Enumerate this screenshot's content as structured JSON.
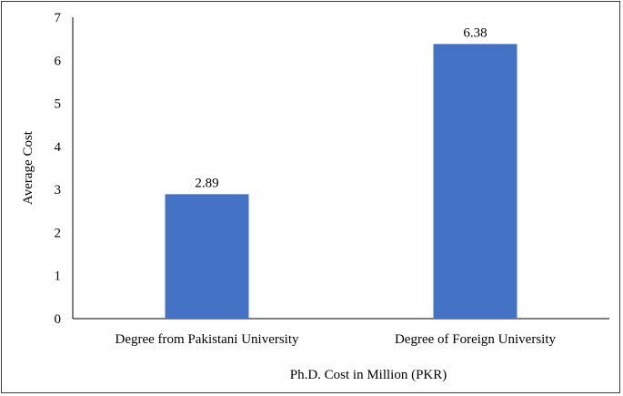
{
  "chart_data": {
    "type": "bar",
    "title": "",
    "xlabel": "Ph.D. Cost in Million (PKR)",
    "ylabel": "Average Cost",
    "categories": [
      "Degree from Pakistani University",
      "Degree of Foreign University"
    ],
    "values": [
      2.89,
      6.38
    ],
    "data_labels": [
      "2.89",
      "6.38"
    ],
    "ylim": [
      0,
      7
    ],
    "yticks": [
      0,
      1,
      2,
      3,
      4,
      5,
      6,
      7
    ],
    "grid": false,
    "legend": "none",
    "bar_color": "#4472C4"
  }
}
